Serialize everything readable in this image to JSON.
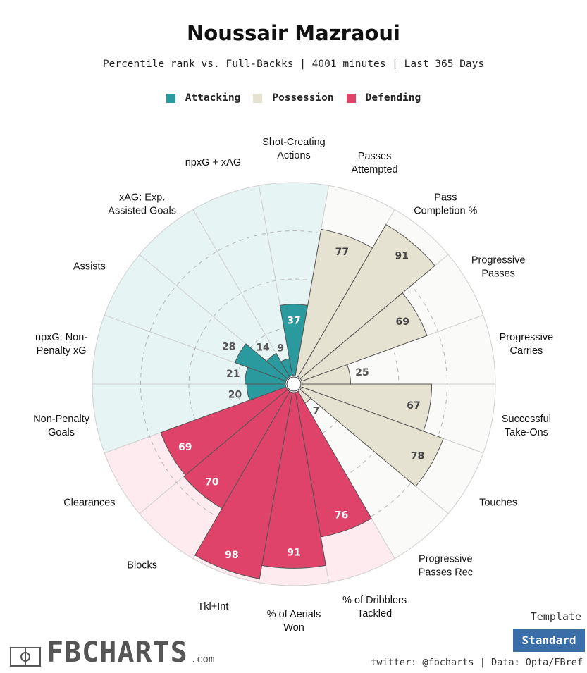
{
  "title": "Noussair Mazraoui",
  "subtitle": "Percentile rank vs. Full-Backks | 4001 minutes | Last 365 Days",
  "legend": [
    {
      "label": "Attacking",
      "color": "#2a9a9e"
    },
    {
      "label": "Possession",
      "color": "#e6e2d1"
    },
    {
      "label": "Defending",
      "color": "#e0436a"
    }
  ],
  "chart_data": {
    "type": "radar-bar",
    "title": "Noussair Mazraoui",
    "rmax": 100,
    "ring_ticks": [
      25,
      50,
      75,
      100
    ],
    "categories": [
      {
        "name": "Attacking",
        "bar_color": "#2a9a9e",
        "bg_color": "#e7f4f4",
        "text_color": "#555555",
        "text_color_inside": "#ffffff"
      },
      {
        "name": "Possession",
        "bar_color": "#e6e2d1",
        "bg_color": "#fafaf8",
        "text_color": "#555555",
        "text_color_inside": "#444444"
      },
      {
        "name": "Defending",
        "bar_color": "#e0436a",
        "bg_color": "#fdebef",
        "text_color": "#555555",
        "text_color_inside": "#ffffff"
      }
    ],
    "params": [
      {
        "label": "Shot-Creating\nActions",
        "value": 37,
        "group": "Attacking"
      },
      {
        "label": "Passes\nAttempted",
        "value": 77,
        "group": "Possession"
      },
      {
        "label": "Pass\nCompletion %",
        "value": 91,
        "group": "Possession"
      },
      {
        "label": "Progressive\nPasses",
        "value": 69,
        "group": "Possession"
      },
      {
        "label": "Progressive\nCarries",
        "value": 25,
        "group": "Possession"
      },
      {
        "label": "Successful\nTake-Ons",
        "value": 67,
        "group": "Possession"
      },
      {
        "label": "Touches",
        "value": 78,
        "group": "Possession"
      },
      {
        "label": "Progressive\nPasses Rec",
        "value": 7,
        "group": "Possession"
      },
      {
        "label": "% of Dribblers\nTackled",
        "value": 76,
        "group": "Defending"
      },
      {
        "label": "% of Aerials\nWon",
        "value": 91,
        "group": "Defending"
      },
      {
        "label": "Tkl+Int",
        "value": 98,
        "group": "Defending"
      },
      {
        "label": "Blocks",
        "value": 70,
        "group": "Defending"
      },
      {
        "label": "Clearances",
        "value": 69,
        "group": "Defending"
      },
      {
        "label": "Non-Penalty\nGoals",
        "value": 20,
        "group": "Attacking"
      },
      {
        "label": "npxG: Non-\nPenalty xG",
        "value": 21,
        "group": "Attacking"
      },
      {
        "label": "Assists",
        "value": 28,
        "group": "Attacking"
      },
      {
        "label": "xAG: Exp.\nAssisted Goals",
        "value": 14,
        "group": "Attacking"
      },
      {
        "label": "npxG + xAG",
        "value": 9,
        "group": "Attacking"
      }
    ]
  },
  "footer": {
    "logo_text": "FBCHARTS",
    "logo_suffix": ".com",
    "template_label": "Template",
    "template_value": "Standard",
    "credit": "twitter: @fbcharts | Data: Opta/FBref"
  }
}
